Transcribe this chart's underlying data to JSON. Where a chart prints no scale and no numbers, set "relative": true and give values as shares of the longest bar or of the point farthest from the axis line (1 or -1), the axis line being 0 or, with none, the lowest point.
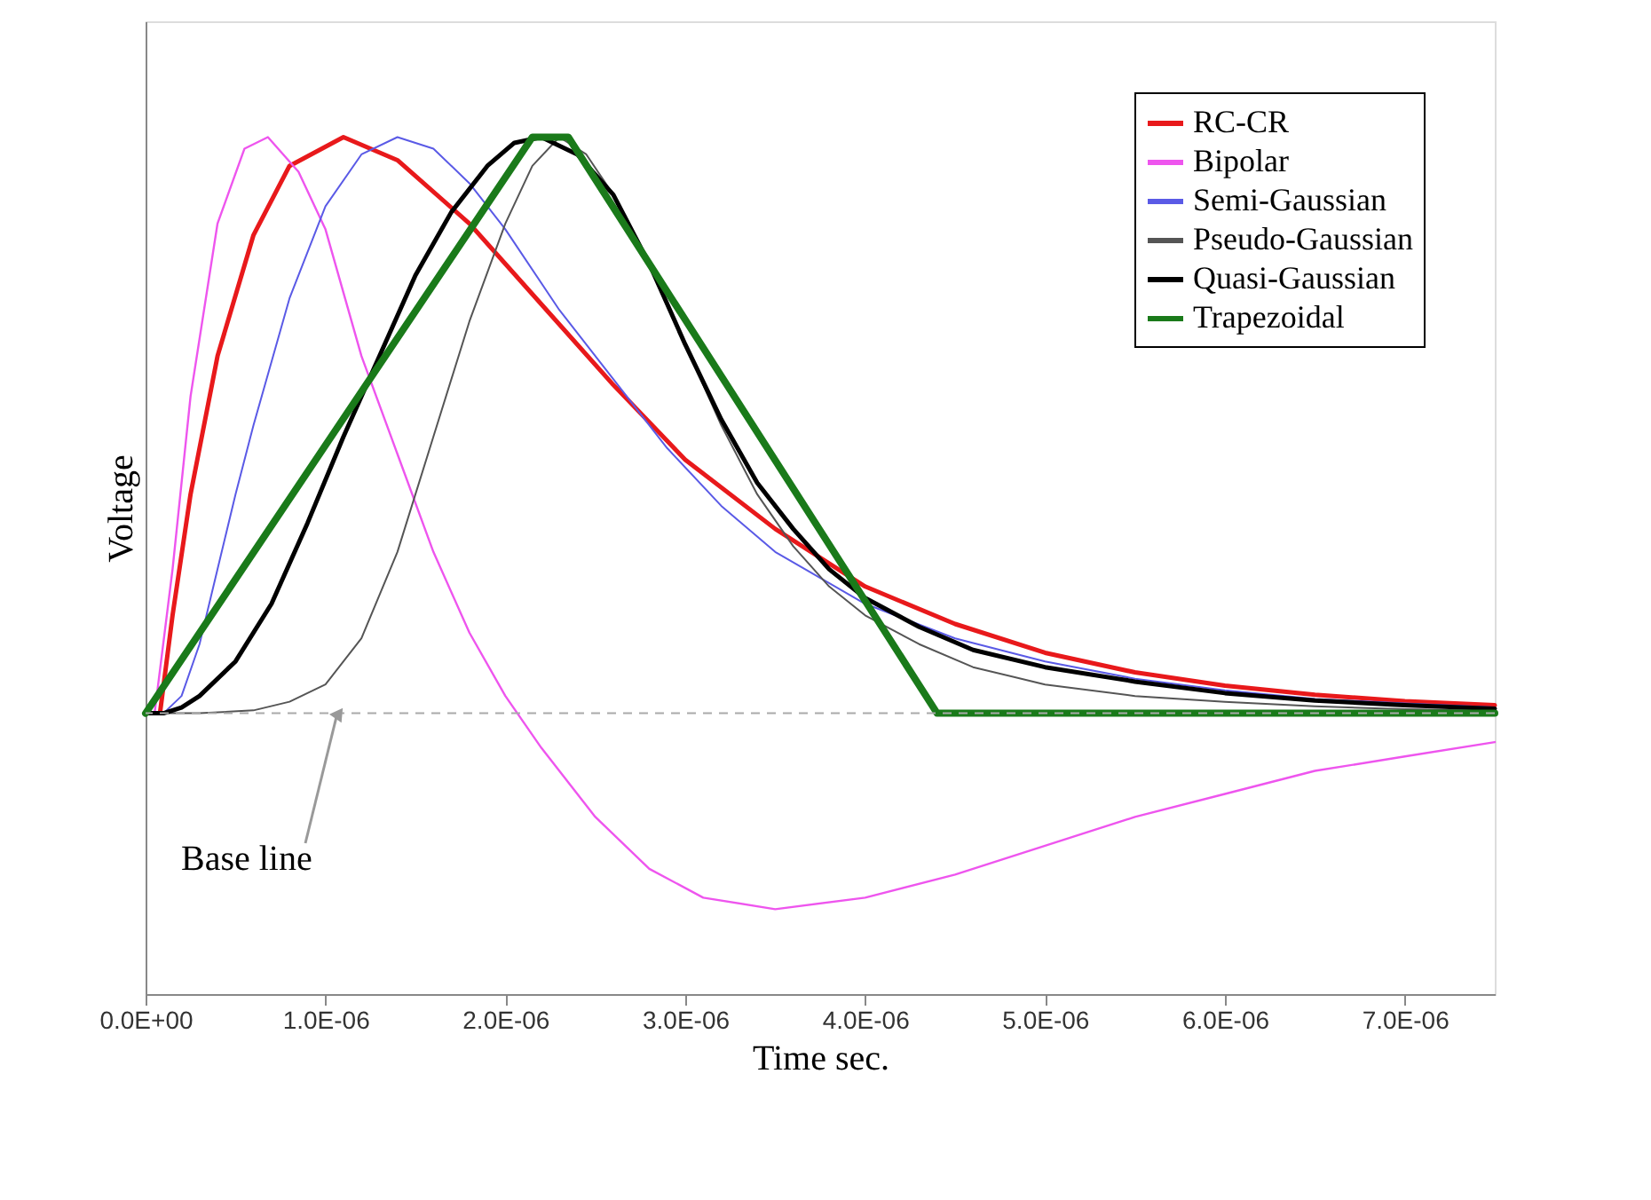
{
  "chart_data": {
    "type": "line",
    "relative": true,
    "xlabel": "Time sec.",
    "ylabel": "Voltage",
    "xlim": [
      0,
      7.5e-06
    ],
    "xticks": [
      {
        "value": 0,
        "label": "0.0E+00"
      },
      {
        "value": 1e-06,
        "label": "1.0E-06"
      },
      {
        "value": 2e-06,
        "label": "2.0E-06"
      },
      {
        "value": 3e-06,
        "label": "3.0E-06"
      },
      {
        "value": 4e-06,
        "label": "4.0E-06"
      },
      {
        "value": 5e-06,
        "label": "5.0E-06"
      },
      {
        "value": 6e-06,
        "label": "6.0E-06"
      },
      {
        "value": 7e-06,
        "label": "7.0E-06"
      }
    ],
    "tick_labels": "x",
    "grid": false,
    "legend": "top right",
    "marker": "none",
    "line_style": "solid",
    "ref_lines": [
      {
        "axis": "y",
        "value": 0,
        "label": "Base line",
        "color": "#aaaaaa",
        "line_style": "dashed"
      }
    ],
    "series": [
      {
        "name": "RC-CR",
        "color": "#e8191b",
        "x": [
          0,
          8e-08,
          1.5e-07,
          2.5e-07,
          4e-07,
          6e-07,
          8e-07,
          1.1e-06,
          1.4e-06,
          1.8e-06,
          2.2e-06,
          2.6e-06,
          3e-06,
          3.5e-06,
          4e-06,
          4.5e-06,
          5e-06,
          5.5e-06,
          6e-06,
          6.5e-06,
          7e-06,
          7.5e-06
        ],
        "values": [
          0,
          0,
          0.17,
          0.38,
          0.62,
          0.83,
          0.95,
          1,
          0.96,
          0.85,
          0.71,
          0.57,
          0.44,
          0.32,
          0.22,
          0.155,
          0.105,
          0.071,
          0.048,
          0.032,
          0.021,
          0.014
        ]
      },
      {
        "name": "Bipolar",
        "color": "#ee55ee",
        "x": [
          0,
          5e-08,
          1.5e-07,
          2.5e-07,
          4e-07,
          5.5e-07,
          6.8e-07,
          8.5e-07,
          1e-06,
          1.2e-06,
          1.4e-06,
          1.6e-06,
          1.8e-06,
          2e-06,
          2.2e-06,
          2.5e-06,
          2.8e-06,
          3.1e-06,
          3.5e-06,
          4e-06,
          4.5e-06,
          5e-06,
          5.5e-06,
          6e-06,
          6.5e-06,
          7e-06,
          7.5e-06
        ],
        "values": [
          0,
          0,
          0.25,
          0.55,
          0.85,
          0.98,
          1,
          0.94,
          0.84,
          0.62,
          0.45,
          0.28,
          0.14,
          0.03,
          -0.06,
          -0.18,
          -0.27,
          -0.32,
          -0.34,
          -0.32,
          -0.28,
          -0.23,
          -0.18,
          -0.14,
          -0.1,
          -0.075,
          -0.05
        ]
      },
      {
        "name": "Semi-Gaussian",
        "color": "#5a5ae6",
        "x": [
          0,
          1e-07,
          2e-07,
          3e-07,
          4e-07,
          5e-07,
          6e-07,
          8e-07,
          1e-06,
          1.2e-06,
          1.4e-06,
          1.6e-06,
          1.8e-06,
          2e-06,
          2.3e-06,
          2.6e-06,
          2.9e-06,
          3.2e-06,
          3.5e-06,
          4e-06,
          4.5e-06,
          5e-06,
          5.5e-06,
          6e-06,
          6.5e-06,
          7e-06,
          7.5e-06
        ],
        "values": [
          0,
          0,
          0.03,
          0.12,
          0.25,
          0.38,
          0.5,
          0.72,
          0.88,
          0.97,
          1,
          0.98,
          0.92,
          0.84,
          0.7,
          0.58,
          0.46,
          0.36,
          0.28,
          0.19,
          0.13,
          0.09,
          0.06,
          0.04,
          0.025,
          0.017,
          0.01
        ]
      },
      {
        "name": "Pseudo-Gaussian",
        "color": "#555555",
        "x": [
          0,
          3e-07,
          6e-07,
          8e-07,
          1e-06,
          1.2e-06,
          1.4e-06,
          1.6e-06,
          1.8e-06,
          2e-06,
          2.15e-06,
          2.3e-06,
          2.45e-06,
          2.6e-06,
          2.8e-06,
          3e-06,
          3.2e-06,
          3.4e-06,
          3.6e-06,
          3.8e-06,
          4e-06,
          4.3e-06,
          4.6e-06,
          5e-06,
          5.5e-06,
          6e-06,
          6.5e-06,
          7e-06,
          7.5e-06
        ],
        "values": [
          0,
          0,
          0.005,
          0.02,
          0.05,
          0.13,
          0.28,
          0.48,
          0.68,
          0.85,
          0.95,
          1,
          0.97,
          0.9,
          0.78,
          0.64,
          0.5,
          0.38,
          0.29,
          0.22,
          0.17,
          0.12,
          0.08,
          0.05,
          0.03,
          0.02,
          0.012,
          0.007,
          0.004
        ]
      },
      {
        "name": "Quasi-Gaussian",
        "color": "#000000",
        "x": [
          0,
          1e-07,
          2e-07,
          3e-07,
          5e-07,
          7e-07,
          9e-07,
          1.1e-06,
          1.3e-06,
          1.5e-06,
          1.7e-06,
          1.9e-06,
          2.05e-06,
          2.2e-06,
          2.4e-06,
          2.6e-06,
          2.8e-06,
          3e-06,
          3.2e-06,
          3.4e-06,
          3.6e-06,
          3.8e-06,
          4e-06,
          4.3e-06,
          4.6e-06,
          5e-06,
          5.5e-06,
          6e-06,
          6.5e-06,
          7e-06,
          7.5e-06
        ],
        "values": [
          0,
          0,
          0.01,
          0.03,
          0.09,
          0.19,
          0.33,
          0.48,
          0.62,
          0.76,
          0.87,
          0.95,
          0.99,
          1,
          0.97,
          0.9,
          0.78,
          0.64,
          0.51,
          0.4,
          0.32,
          0.25,
          0.2,
          0.15,
          0.11,
          0.08,
          0.055,
          0.035,
          0.022,
          0.014,
          0.008
        ]
      },
      {
        "name": "Trapezoidal",
        "color": "#1a7a1a",
        "x": [
          0,
          2.15e-06,
          2.35e-06,
          4.4e-06,
          7.5e-06
        ],
        "values": [
          0,
          1,
          1,
          0,
          0
        ]
      }
    ]
  }
}
